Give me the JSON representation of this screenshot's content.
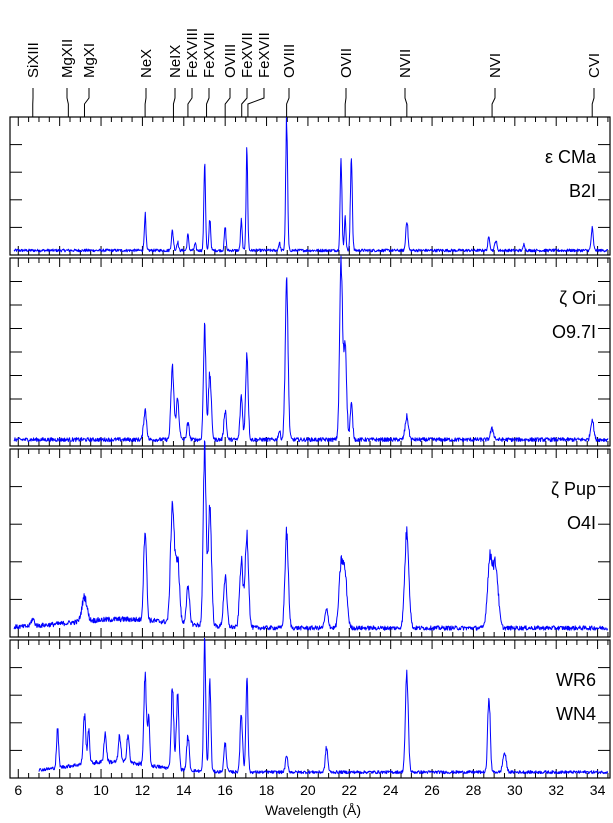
{
  "chart_data": {
    "type": "line",
    "xlabel": "Wavelength (Å)",
    "xlim": [
      5.6,
      34.6
    ],
    "x_ticks": [
      "6",
      "8",
      "10",
      "12",
      "14",
      "16",
      "18",
      "20",
      "22",
      "24",
      "26",
      "28",
      "30",
      "32",
      "34"
    ],
    "grid": false,
    "line_ids": [
      {
        "ion": "SiXIII",
        "wavelength": 6.7
      },
      {
        "ion": "MgXII",
        "wavelength": 8.42
      },
      {
        "ion": "MgXI",
        "wavelength": 9.2
      },
      {
        "ion": "NeX",
        "wavelength": 12.13
      },
      {
        "ion": "NeIX",
        "wavelength": 13.5
      },
      {
        "ion": "FeXVIII",
        "wavelength": 14.2
      },
      {
        "ion": "FeXVII",
        "wavelength": 15.1
      },
      {
        "ion": "OVIII",
        "wavelength": 16.0
      },
      {
        "ion": "FeXVII",
        "wavelength": 16.8
      },
      {
        "ion": "FeXVII",
        "wavelength": 17.1
      },
      {
        "ion": "OVIII",
        "wavelength": 18.97
      },
      {
        "ion": "OVII",
        "wavelength": 21.8
      },
      {
        "ion": "NVII",
        "wavelength": 24.78
      },
      {
        "ion": "NVI",
        "wavelength": 28.9
      },
      {
        "ion": "CVI",
        "wavelength": 33.74
      }
    ],
    "panels": [
      {
        "star": "ε CMa",
        "spectral_type": "B2I",
        "x_start": 5.8,
        "baseline": 0.02,
        "lines": [
          [
            12.13,
            0.28,
            0.04
          ],
          [
            13.45,
            0.15,
            0.05
          ],
          [
            13.7,
            0.07,
            0.04
          ],
          [
            14.2,
            0.12,
            0.04
          ],
          [
            14.55,
            0.05,
            0.04
          ],
          [
            15.01,
            0.7,
            0.04
          ],
          [
            15.26,
            0.25,
            0.04
          ],
          [
            16.0,
            0.18,
            0.04
          ],
          [
            16.78,
            0.23,
            0.04
          ],
          [
            17.05,
            0.78,
            0.04
          ],
          [
            18.62,
            0.06,
            0.04
          ],
          [
            18.97,
            1.0,
            0.045
          ],
          [
            21.6,
            0.68,
            0.045
          ],
          [
            21.8,
            0.25,
            0.04
          ],
          [
            22.1,
            0.74,
            0.045
          ],
          [
            24.78,
            0.24,
            0.05
          ],
          [
            28.75,
            0.1,
            0.05
          ],
          [
            29.08,
            0.08,
            0.05
          ],
          [
            30.45,
            0.05,
            0.04
          ],
          [
            33.74,
            0.17,
            0.05
          ]
        ]
      },
      {
        "star": "ζ Ori",
        "spectral_type": "O9.7I",
        "x_start": 5.8,
        "baseline": 0.025,
        "lines": [
          [
            12.13,
            0.17,
            0.07
          ],
          [
            13.45,
            0.41,
            0.07
          ],
          [
            13.7,
            0.23,
            0.07
          ],
          [
            14.2,
            0.09,
            0.06
          ],
          [
            15.01,
            0.64,
            0.06
          ],
          [
            15.26,
            0.37,
            0.07
          ],
          [
            16.0,
            0.17,
            0.06
          ],
          [
            16.78,
            0.25,
            0.06
          ],
          [
            17.05,
            0.5,
            0.06
          ],
          [
            18.62,
            0.05,
            0.05
          ],
          [
            18.97,
            0.88,
            0.07
          ],
          [
            21.6,
            1.0,
            0.07
          ],
          [
            21.8,
            0.55,
            0.07
          ],
          [
            22.1,
            0.2,
            0.06
          ],
          [
            24.78,
            0.13,
            0.08
          ],
          [
            28.9,
            0.06,
            0.08
          ],
          [
            33.74,
            0.12,
            0.07
          ]
        ]
      },
      {
        "star": "ζ Pup",
        "spectral_type": "O4I",
        "x_start": 5.8,
        "baseline": 0.04,
        "lines": [
          [
            6.7,
            0.04,
            0.08
          ],
          [
            9.2,
            0.14,
            0.12
          ],
          [
            12.13,
            0.53,
            0.07
          ],
          [
            13.45,
            0.68,
            0.09
          ],
          [
            13.7,
            0.37,
            0.09
          ],
          [
            14.2,
            0.2,
            0.08
          ],
          [
            15.01,
            1.0,
            0.07
          ],
          [
            15.26,
            0.68,
            0.08
          ],
          [
            16.0,
            0.28,
            0.08
          ],
          [
            16.78,
            0.38,
            0.08
          ],
          [
            17.05,
            0.54,
            0.08
          ],
          [
            18.97,
            0.54,
            0.08
          ],
          [
            20.9,
            0.1,
            0.08
          ],
          [
            21.6,
            0.34,
            0.1
          ],
          [
            21.8,
            0.28,
            0.1
          ],
          [
            24.78,
            0.55,
            0.1
          ],
          [
            28.8,
            0.39,
            0.12
          ],
          [
            29.08,
            0.34,
            0.12
          ]
        ]
      },
      {
        "star": "WR6",
        "spectral_type": "WN4",
        "x_start": 7.0,
        "baseline": 0.03,
        "lines": [
          [
            7.9,
            0.3,
            0.05
          ],
          [
            9.2,
            0.38,
            0.06
          ],
          [
            9.4,
            0.26,
            0.05
          ],
          [
            10.2,
            0.22,
            0.06
          ],
          [
            10.9,
            0.2,
            0.06
          ],
          [
            11.3,
            0.22,
            0.06
          ],
          [
            12.13,
            0.68,
            0.06
          ],
          [
            12.3,
            0.37,
            0.05
          ],
          [
            13.45,
            0.65,
            0.06
          ],
          [
            13.7,
            0.58,
            0.06
          ],
          [
            14.2,
            0.27,
            0.06
          ],
          [
            15.01,
            1.0,
            0.05
          ],
          [
            15.26,
            0.7,
            0.05
          ],
          [
            16.0,
            0.22,
            0.06
          ],
          [
            16.78,
            0.45,
            0.06
          ],
          [
            17.05,
            0.75,
            0.05
          ],
          [
            18.97,
            0.12,
            0.06
          ],
          [
            20.9,
            0.19,
            0.06
          ],
          [
            24.78,
            0.75,
            0.07
          ],
          [
            28.75,
            0.6,
            0.06
          ],
          [
            29.5,
            0.15,
            0.08
          ]
        ]
      }
    ]
  }
}
